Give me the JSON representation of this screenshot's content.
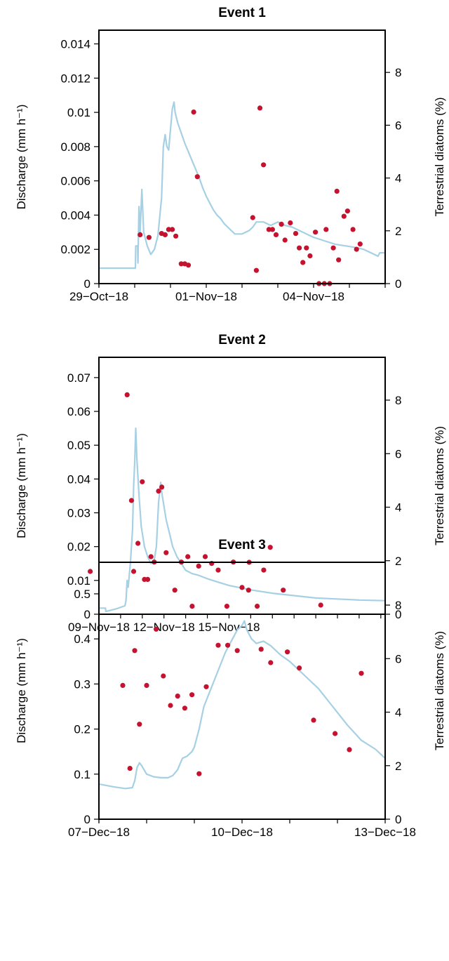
{
  "colors": {
    "discharge": "#a6d0e3",
    "diatoms": "#c4122f"
  },
  "chart_data": [
    {
      "type": "line+scatter",
      "title": "Event 1",
      "ylabel": "Discharge (mm h⁻¹)",
      "y2label": "Terrestrial diatoms (%)",
      "xlim": [
        0,
        8
      ],
      "ylim": [
        0,
        0.0148
      ],
      "y2lim": [
        0,
        9.6
      ],
      "xticks": [
        {
          "x": 0,
          "label": "29−Oct−18"
        },
        {
          "x": 3,
          "label": "01−Nov−18"
        },
        {
          "x": 6,
          "label": "04−Nov−18"
        }
      ],
      "yticks": [
        {
          "v": 0,
          "label": "0"
        },
        {
          "v": 0.002,
          "label": "0.002"
        },
        {
          "v": 0.004,
          "label": "0.004"
        },
        {
          "v": 0.006,
          "label": "0.006"
        },
        {
          "v": 0.008,
          "label": "0.008"
        },
        {
          "v": 0.01,
          "label": "0.01"
        },
        {
          "v": 0.012,
          "label": "0.012"
        },
        {
          "v": 0.014,
          "label": "0.014"
        }
      ],
      "y2ticks": [
        {
          "v": 0,
          "label": "0"
        },
        {
          "v": 2,
          "label": "2"
        },
        {
          "v": 4,
          "label": "4"
        },
        {
          "v": 6,
          "label": "6"
        },
        {
          "v": 8,
          "label": "8"
        }
      ],
      "discharge": [
        [
          -1,
          0.0009
        ],
        [
          1.02,
          0.0009
        ],
        [
          1.03,
          0.0022
        ],
        [
          1.08,
          0.0022
        ],
        [
          1.09,
          0.0012
        ],
        [
          1.12,
          0.0045
        ],
        [
          1.15,
          0.003
        ],
        [
          1.2,
          0.0055
        ],
        [
          1.25,
          0.003
        ],
        [
          1.35,
          0.0022
        ],
        [
          1.45,
          0.0017
        ],
        [
          1.55,
          0.002
        ],
        [
          1.65,
          0.0028
        ],
        [
          1.75,
          0.005
        ],
        [
          1.8,
          0.008
        ],
        [
          1.85,
          0.0087
        ],
        [
          1.9,
          0.008
        ],
        [
          1.95,
          0.0078
        ],
        [
          2.0,
          0.009
        ],
        [
          2.05,
          0.0102
        ],
        [
          2.1,
          0.0106
        ],
        [
          2.13,
          0.01
        ],
        [
          2.2,
          0.0094
        ],
        [
          2.3,
          0.0088
        ],
        [
          2.4,
          0.0082
        ],
        [
          2.5,
          0.0077
        ],
        [
          2.6,
          0.0072
        ],
        [
          2.7,
          0.0067
        ],
        [
          2.8,
          0.0062
        ],
        [
          2.9,
          0.0056
        ],
        [
          3.0,
          0.0051
        ],
        [
          3.1,
          0.0047
        ],
        [
          3.2,
          0.0043
        ],
        [
          3.3,
          0.004
        ],
        [
          3.4,
          0.0038
        ],
        [
          3.5,
          0.0035
        ],
        [
          3.6,
          0.0033
        ],
        [
          3.7,
          0.0031
        ],
        [
          3.8,
          0.0029
        ],
        [
          4.0,
          0.0029
        ],
        [
          4.2,
          0.0031
        ],
        [
          4.3,
          0.0033
        ],
        [
          4.4,
          0.0036
        ],
        [
          4.6,
          0.0036
        ],
        [
          4.8,
          0.0034
        ],
        [
          5.0,
          0.0036
        ],
        [
          5.2,
          0.0034
        ],
        [
          5.4,
          0.0033
        ],
        [
          5.6,
          0.0031
        ],
        [
          5.8,
          0.0029
        ],
        [
          6.0,
          0.0027
        ],
        [
          6.3,
          0.0025
        ],
        [
          6.6,
          0.0023
        ],
        [
          6.9,
          0.0022
        ],
        [
          7.2,
          0.0021
        ],
        [
          7.4,
          0.002
        ],
        [
          7.7,
          0.0017
        ],
        [
          7.8,
          0.0016
        ],
        [
          7.85,
          0.0018
        ],
        [
          8.0,
          0.0018
        ]
      ],
      "diatoms": [
        [
          1.15,
          1.85
        ],
        [
          1.4,
          1.75
        ],
        [
          1.75,
          1.9
        ],
        [
          1.85,
          1.85
        ],
        [
          1.95,
          2.05
        ],
        [
          2.05,
          2.05
        ],
        [
          2.15,
          1.8
        ],
        [
          2.3,
          0.75
        ],
        [
          2.4,
          0.75
        ],
        [
          2.5,
          0.7
        ],
        [
          2.65,
          6.5
        ],
        [
          2.75,
          4.05
        ],
        [
          4.3,
          2.5
        ],
        [
          4.4,
          0.5
        ],
        [
          4.5,
          6.65
        ],
        [
          4.6,
          4.5
        ],
        [
          4.75,
          2.05
        ],
        [
          4.85,
          2.05
        ],
        [
          4.95,
          1.85
        ],
        [
          5.1,
          2.25
        ],
        [
          5.2,
          1.65
        ],
        [
          5.35,
          2.3
        ],
        [
          5.5,
          1.9
        ],
        [
          5.6,
          1.35
        ],
        [
          5.7,
          0.8
        ],
        [
          5.8,
          1.35
        ],
        [
          5.9,
          1.05
        ],
        [
          6.05,
          1.95
        ],
        [
          6.15,
          0
        ],
        [
          6.3,
          0
        ],
        [
          6.35,
          2.05
        ],
        [
          6.45,
          0
        ],
        [
          6.55,
          1.35
        ],
        [
          6.65,
          3.5
        ],
        [
          6.7,
          0.9
        ],
        [
          6.85,
          2.55
        ],
        [
          6.95,
          2.75
        ],
        [
          7.1,
          2.05
        ],
        [
          7.2,
          1.3
        ],
        [
          7.3,
          1.5
        ]
      ]
    },
    {
      "type": "line+scatter",
      "title": "Event 2",
      "ylabel": "Discharge (mm h⁻¹)",
      "y2label": "Terrestrial diatoms (%)",
      "xlim": [
        0,
        13.2
      ],
      "ylim": [
        0,
        0.076
      ],
      "y2lim": [
        0,
        9.6
      ],
      "xticks": [
        {
          "x": 0,
          "label": "09−Nov−18"
        },
        {
          "x": 3,
          "label": "12−Nov−18"
        },
        {
          "x": 6,
          "label": "15−Nov−18"
        }
      ],
      "yticks": [
        {
          "v": 0,
          "label": "0"
        },
        {
          "v": 0.01,
          "label": "0.01"
        },
        {
          "v": 0.02,
          "label": "0.02"
        },
        {
          "v": 0.03,
          "label": "0.03"
        },
        {
          "v": 0.04,
          "label": "0.04"
        },
        {
          "v": 0.05,
          "label": "0.05"
        },
        {
          "v": 0.06,
          "label": "0.06"
        },
        {
          "v": 0.07,
          "label": "0.07"
        }
      ],
      "y2ticks": [
        {
          "v": 0,
          "label": "0"
        },
        {
          "v": 2,
          "label": "2"
        },
        {
          "v": 4,
          "label": "4"
        },
        {
          "v": 6,
          "label": "6"
        },
        {
          "v": 8,
          "label": "8"
        }
      ],
      "discharge": [
        [
          -1.3,
          0.0018
        ],
        [
          0.3,
          0.0018
        ],
        [
          0.32,
          0.0008
        ],
        [
          0.8,
          0.0016
        ],
        [
          1.2,
          0.0025
        ],
        [
          1.25,
          0.004
        ],
        [
          1.3,
          0.01
        ],
        [
          1.35,
          0.008
        ],
        [
          1.45,
          0.015
        ],
        [
          1.55,
          0.025
        ],
        [
          1.6,
          0.038
        ],
        [
          1.65,
          0.045
        ],
        [
          1.7,
          0.055
        ],
        [
          1.75,
          0.046
        ],
        [
          1.85,
          0.035
        ],
        [
          1.95,
          0.026
        ],
        [
          2.1,
          0.02
        ],
        [
          2.25,
          0.017
        ],
        [
          2.4,
          0.015
        ],
        [
          2.55,
          0.016
        ],
        [
          2.65,
          0.02
        ],
        [
          2.75,
          0.033
        ],
        [
          2.85,
          0.039
        ],
        [
          2.9,
          0.036
        ],
        [
          3.0,
          0.032
        ],
        [
          3.1,
          0.028
        ],
        [
          3.25,
          0.024
        ],
        [
          3.4,
          0.02
        ],
        [
          3.6,
          0.017
        ],
        [
          3.8,
          0.015
        ],
        [
          4.0,
          0.013
        ],
        [
          4.3,
          0.012
        ],
        [
          4.6,
          0.0115
        ],
        [
          5.0,
          0.0105
        ],
        [
          5.5,
          0.0095
        ],
        [
          6.0,
          0.0085
        ],
        [
          7.0,
          0.0072
        ],
        [
          8.0,
          0.0062
        ],
        [
          9.0,
          0.0055
        ],
        [
          10.0,
          0.0048
        ],
        [
          11.0,
          0.0045
        ],
        [
          12.0,
          0.0042
        ],
        [
          13.2,
          0.004
        ]
      ],
      "diatoms": [
        [
          -0.4,
          1.6
        ],
        [
          1.3,
          8.2
        ],
        [
          1.5,
          4.25
        ],
        [
          1.6,
          1.6
        ],
        [
          1.8,
          2.65
        ],
        [
          2.0,
          4.95
        ],
        [
          2.1,
          1.3
        ],
        [
          2.25,
          1.3
        ],
        [
          2.4,
          2.15
        ],
        [
          2.55,
          1.95
        ],
        [
          2.75,
          4.6
        ],
        [
          2.9,
          4.75
        ],
        [
          3.1,
          2.3
        ],
        [
          3.5,
          0.9
        ],
        [
          3.8,
          1.95
        ],
        [
          4.1,
          2.15
        ],
        [
          4.3,
          0.3
        ],
        [
          4.6,
          1.8
        ],
        [
          4.9,
          2.15
        ],
        [
          5.2,
          1.9
        ],
        [
          5.5,
          1.65
        ],
        [
          5.9,
          0.3
        ],
        [
          6.2,
          1.95
        ],
        [
          6.6,
          1.0
        ],
        [
          6.9,
          0.9
        ],
        [
          7.3,
          0.3
        ],
        [
          7.6,
          1.65
        ],
        [
          7.9,
          2.5
        ],
        [
          8.5,
          0.9
        ]
      ]
    },
    {
      "type": "line+scatter",
      "title": "Event 3",
      "ylabel": "Discharge (mm h⁻¹)",
      "y2label": "Terrestrial diatoms (%)",
      "xlim": [
        0,
        6
      ],
      "ylim": [
        0,
        0.57
      ],
      "y2lim": [
        0,
        9.6
      ],
      "xticks": [
        {
          "x": 0,
          "label": "07−Dec−18"
        },
        {
          "x": 3,
          "label": "10−Dec−18"
        },
        {
          "x": 6,
          "label": "13−Dec−18"
        }
      ],
      "yticks": [
        {
          "v": 0,
          "label": "0"
        },
        {
          "v": 0.1,
          "label": "0.1"
        },
        {
          "v": 0.2,
          "label": "0.2"
        },
        {
          "v": 0.3,
          "label": "0.3"
        },
        {
          "v": 0.4,
          "label": "0.4"
        },
        {
          "v": 0.5,
          "label": "0.5"
        }
      ],
      "y2ticks": [
        {
          "v": 0,
          "label": "0"
        },
        {
          "v": 2,
          "label": "2"
        },
        {
          "v": 4,
          "label": "4"
        },
        {
          "v": 6,
          "label": "6"
        },
        {
          "v": 8,
          "label": "8"
        }
      ],
      "discharge": [
        [
          0,
          0.078
        ],
        [
          0.3,
          0.072
        ],
        [
          0.55,
          0.068
        ],
        [
          0.7,
          0.07
        ],
        [
          0.75,
          0.085
        ],
        [
          0.8,
          0.115
        ],
        [
          0.85,
          0.125
        ],
        [
          0.9,
          0.118
        ],
        [
          1.0,
          0.1
        ],
        [
          1.15,
          0.094
        ],
        [
          1.3,
          0.092
        ],
        [
          1.45,
          0.092
        ],
        [
          1.55,
          0.097
        ],
        [
          1.65,
          0.11
        ],
        [
          1.75,
          0.135
        ],
        [
          1.85,
          0.14
        ],
        [
          1.95,
          0.15
        ],
        [
          2.0,
          0.16
        ],
        [
          2.1,
          0.2
        ],
        [
          2.2,
          0.25
        ],
        [
          2.35,
          0.29
        ],
        [
          2.5,
          0.33
        ],
        [
          2.65,
          0.37
        ],
        [
          2.8,
          0.4
        ],
        [
          2.9,
          0.42
        ],
        [
          3.0,
          0.43
        ],
        [
          3.05,
          0.44
        ],
        [
          3.1,
          0.42
        ],
        [
          3.2,
          0.4
        ],
        [
          3.3,
          0.39
        ],
        [
          3.45,
          0.395
        ],
        [
          3.6,
          0.385
        ],
        [
          3.8,
          0.365
        ],
        [
          4.0,
          0.35
        ],
        [
          4.3,
          0.32
        ],
        [
          4.6,
          0.29
        ],
        [
          4.9,
          0.25
        ],
        [
          5.2,
          0.21
        ],
        [
          5.5,
          0.175
        ],
        [
          5.8,
          0.155
        ],
        [
          6.0,
          0.135
        ],
        [
          6.3,
          0.12
        ]
      ],
      "diatoms": [
        [
          0.5,
          5.0
        ],
        [
          0.65,
          1.9
        ],
        [
          0.75,
          6.3
        ],
        [
          0.85,
          3.55
        ],
        [
          1.0,
          5.0
        ],
        [
          1.2,
          7.1
        ],
        [
          1.35,
          5.35
        ],
        [
          1.5,
          4.25
        ],
        [
          1.65,
          4.6
        ],
        [
          1.8,
          4.15
        ],
        [
          1.95,
          4.65
        ],
        [
          2.1,
          1.7
        ],
        [
          2.25,
          4.95
        ],
        [
          2.5,
          6.5
        ],
        [
          2.7,
          6.5
        ],
        [
          2.9,
          6.3
        ],
        [
          3.15,
          9.6
        ],
        [
          3.4,
          6.35
        ],
        [
          3.6,
          5.85
        ],
        [
          3.95,
          6.25
        ],
        [
          4.2,
          5.65
        ],
        [
          4.5,
          3.7
        ],
        [
          4.65,
          8.0
        ],
        [
          4.95,
          3.2
        ],
        [
          5.25,
          2.6
        ],
        [
          5.5,
          5.45
        ]
      ]
    }
  ]
}
